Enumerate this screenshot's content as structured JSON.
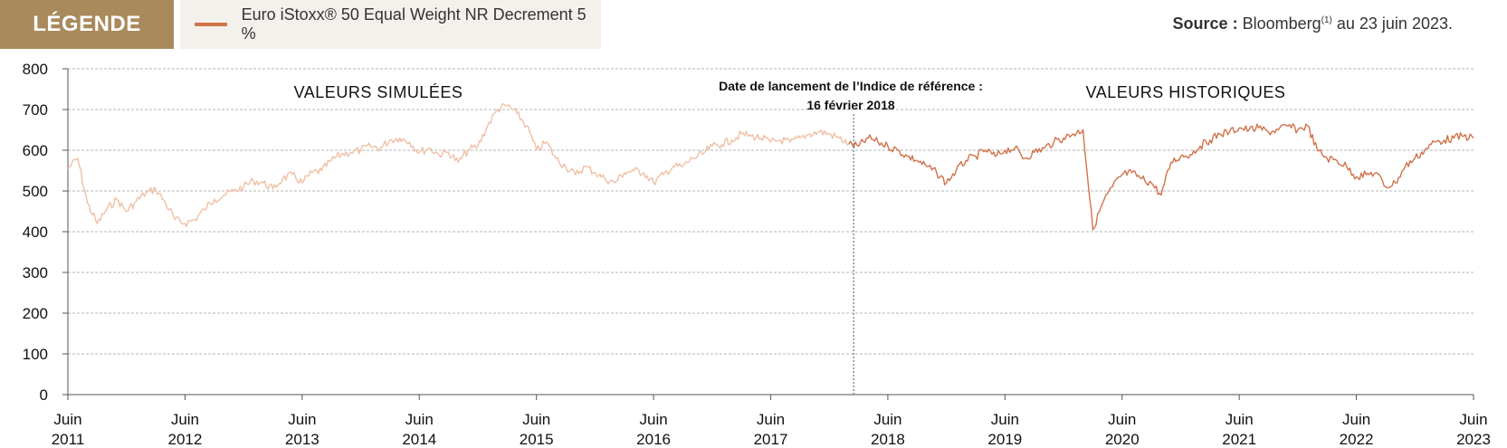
{
  "legend": {
    "tag": "LÉGENDE",
    "series_label": "Euro iStoxx® 50 Equal Weight NR Decrement 5 %"
  },
  "source": {
    "bold": "Source :",
    "text": " Bloomberg",
    "sup": "(1)",
    "suffix": " au 23 juin 2023."
  },
  "annotations": {
    "simulated": "VALEURS SIMULÉES",
    "historical": "VALEURS HISTORIQUES",
    "launch_line1": "Date de lancement de l’Indice de référence :",
    "launch_line2": "16 février 2018"
  },
  "colors": {
    "simulated": "#efc0a6",
    "historical": "#d0724a",
    "legend_tag": "#a98a5c",
    "legend_bg": "#f4f1ec"
  },
  "chart_data": {
    "type": "line",
    "ylim": [
      0,
      800
    ],
    "yticks": [
      "0",
      "100",
      "200",
      "300",
      "400",
      "500",
      "600",
      "700",
      "800"
    ],
    "xticks": [
      {
        "line1": "Juin",
        "line2": "2011"
      },
      {
        "line1": "Juin",
        "line2": "2012"
      },
      {
        "line1": "Juin",
        "line2": "2013"
      },
      {
        "line1": "Juin",
        "line2": "2014"
      },
      {
        "line1": "Juin",
        "line2": "2015"
      },
      {
        "line1": "Juin",
        "line2": "2016"
      },
      {
        "line1": "Juin",
        "line2": "2017"
      },
      {
        "line1": "Juin",
        "line2": "2018"
      },
      {
        "line1": "Juin",
        "line2": "2019"
      },
      {
        "line1": "Juin",
        "line2": "2020"
      },
      {
        "line1": "Juin",
        "line2": "2021"
      },
      {
        "line1": "Juin",
        "line2": "2022"
      },
      {
        "line1": "Juin",
        "line2": "2023"
      }
    ],
    "xrange": [
      "2011-06",
      "2023-06"
    ],
    "launch_date": "2018-02-16",
    "grid": true,
    "series": [
      {
        "segment": "simulated",
        "x": [
          "2011-06",
          "2011-07",
          "2011-08",
          "2011-09",
          "2011-10",
          "2011-11",
          "2011-12",
          "2012-01",
          "2012-02",
          "2012-03",
          "2012-04",
          "2012-05",
          "2012-06",
          "2012-07",
          "2012-08",
          "2012-09",
          "2012-10",
          "2012-11",
          "2012-12",
          "2013-01",
          "2013-02",
          "2013-03",
          "2013-04",
          "2013-05",
          "2013-06",
          "2013-07",
          "2013-08",
          "2013-09",
          "2013-10",
          "2013-11",
          "2013-12",
          "2014-01",
          "2014-02",
          "2014-03",
          "2014-04",
          "2014-05",
          "2014-06",
          "2014-07",
          "2014-08",
          "2014-09",
          "2014-10",
          "2014-11",
          "2014-12",
          "2015-01",
          "2015-02",
          "2015-03",
          "2015-04",
          "2015-05",
          "2015-06",
          "2015-07",
          "2015-08",
          "2015-09",
          "2015-10",
          "2015-11",
          "2015-12",
          "2016-01",
          "2016-02",
          "2016-03",
          "2016-04",
          "2016-05",
          "2016-06",
          "2016-07",
          "2016-08",
          "2016-09",
          "2016-10",
          "2016-11",
          "2016-12",
          "2017-01",
          "2017-02",
          "2017-03",
          "2017-04",
          "2017-05",
          "2017-06",
          "2017-07",
          "2017-08",
          "2017-09",
          "2017-10",
          "2017-11",
          "2017-12",
          "2018-01",
          "2018-02"
        ],
        "values": [
          555,
          580,
          470,
          420,
          455,
          480,
          450,
          475,
          495,
          505,
          470,
          430,
          420,
          430,
          455,
          480,
          490,
          500,
          510,
          525,
          520,
          505,
          530,
          540,
          520,
          545,
          550,
          575,
          590,
          595,
          600,
          610,
          605,
          625,
          630,
          620,
          595,
          605,
          590,
          595,
          570,
          600,
          610,
          660,
          700,
          710,
          690,
          660,
          600,
          620,
          580,
          560,
          540,
          560,
          545,
          530,
          520,
          545,
          550,
          545,
          520,
          540,
          560,
          560,
          580,
          590,
          610,
          615,
          625,
          640,
          635,
          630,
          620,
          625,
          620,
          630,
          640,
          645,
          640,
          630,
          615
        ]
      },
      {
        "segment": "historical",
        "x": [
          "2018-02",
          "2018-03",
          "2018-04",
          "2018-05",
          "2018-06",
          "2018-07",
          "2018-08",
          "2018-09",
          "2018-10",
          "2018-11",
          "2018-12",
          "2019-01",
          "2019-02",
          "2019-03",
          "2019-04",
          "2019-05",
          "2019-06",
          "2019-07",
          "2019-08",
          "2019-09",
          "2019-10",
          "2019-11",
          "2019-12",
          "2020-01",
          "2020-02",
          "2020-03",
          "2020-04",
          "2020-05",
          "2020-06",
          "2020-07",
          "2020-08",
          "2020-09",
          "2020-10",
          "2020-11",
          "2020-12",
          "2021-01",
          "2021-02",
          "2021-03",
          "2021-04",
          "2021-05",
          "2021-06",
          "2021-07",
          "2021-08",
          "2021-09",
          "2021-10",
          "2021-11",
          "2021-12",
          "2022-01",
          "2022-02",
          "2022-03",
          "2022-04",
          "2022-05",
          "2022-06",
          "2022-07",
          "2022-08",
          "2022-09",
          "2022-10",
          "2022-11",
          "2022-12",
          "2023-01",
          "2023-02",
          "2023-03",
          "2023-04",
          "2023-05",
          "2023-06"
        ],
        "values": [
          615,
          610,
          630,
          620,
          610,
          600,
          585,
          575,
          560,
          545,
          520,
          550,
          575,
          585,
          600,
          585,
          600,
          605,
          580,
          595,
          605,
          620,
          630,
          640,
          650,
          405,
          470,
          510,
          540,
          545,
          530,
          520,
          490,
          570,
          585,
          590,
          610,
          625,
          640,
          645,
          655,
          650,
          655,
          645,
          650,
          660,
          650,
          660,
          600,
          580,
          575,
          560,
          535,
          540,
          545,
          510,
          520,
          560,
          580,
          600,
          620,
          625,
          630,
          635,
          630
        ]
      }
    ]
  }
}
